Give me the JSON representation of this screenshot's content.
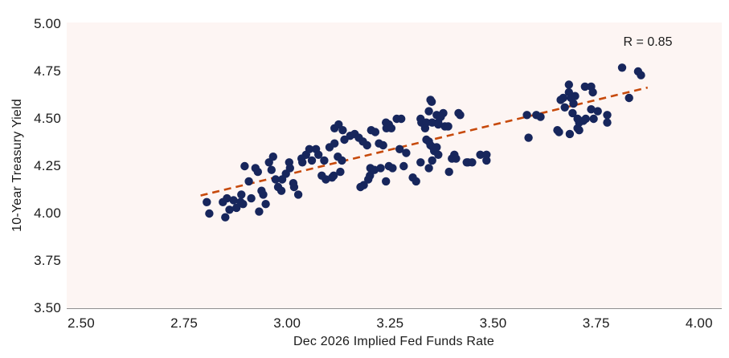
{
  "chart_data": {
    "type": "scatter",
    "title": "",
    "xlabel": "Dec 2026 Implied Fed Funds Rate",
    "ylabel": "10-Year Treasury Yield",
    "annotation": "R = 0.85",
    "xlim": [
      2.465,
      4.055
    ],
    "ylim": [
      3.5,
      5.0085
    ],
    "x_tick_values": [
      2.5,
      2.75,
      3.0,
      3.25,
      3.5,
      3.75,
      4.0
    ],
    "y_tick_values": [
      3.5,
      3.75,
      4.0,
      4.25,
      4.5,
      4.75,
      5.0
    ],
    "grid": false,
    "legend": "none",
    "colors": {
      "dot": "#17265c",
      "trend": "#c74a0c",
      "plot_bg": "#fdf5f3",
      "axis_line": "#8f8f8f",
      "text": "#1b1b1b"
    },
    "trendline": {
      "style": "dashed",
      "x1": 2.79,
      "y1": 4.095,
      "x2": 3.875,
      "y2": 4.665
    },
    "points": [
      [
        2.805,
        4.06
      ],
      [
        2.811,
        4.0
      ],
      [
        2.844,
        4.06
      ],
      [
        2.854,
        4.08
      ],
      [
        2.85,
        3.98
      ],
      [
        2.86,
        4.02
      ],
      [
        2.87,
        4.07
      ],
      [
        2.877,
        4.03
      ],
      [
        2.887,
        4.06
      ],
      [
        2.893,
        4.05
      ],
      [
        2.897,
        4.25
      ],
      [
        2.907,
        4.17
      ],
      [
        2.889,
        4.1
      ],
      [
        2.913,
        4.08
      ],
      [
        2.923,
        4.24
      ],
      [
        2.929,
        4.22
      ],
      [
        2.938,
        4.12
      ],
      [
        2.942,
        4.1
      ],
      [
        2.932,
        4.01
      ],
      [
        2.948,
        4.05
      ],
      [
        2.956,
        4.27
      ],
      [
        2.966,
        4.3
      ],
      [
        2.962,
        4.23
      ],
      [
        2.972,
        4.18
      ],
      [
        2.978,
        4.14
      ],
      [
        2.986,
        4.12
      ],
      [
        2.988,
        4.18
      ],
      [
        2.997,
        4.21
      ],
      [
        3.005,
        4.27
      ],
      [
        3.007,
        4.24
      ],
      [
        3.015,
        4.16
      ],
      [
        3.017,
        4.14
      ],
      [
        3.027,
        4.1
      ],
      [
        3.035,
        4.29
      ],
      [
        3.037,
        4.27
      ],
      [
        3.046,
        4.31
      ],
      [
        3.054,
        4.34
      ],
      [
        3.06,
        4.28
      ],
      [
        3.07,
        4.34
      ],
      [
        3.076,
        4.31
      ],
      [
        3.084,
        4.2
      ],
      [
        3.09,
        4.28
      ],
      [
        3.103,
        4.35
      ],
      [
        3.109,
        4.19
      ],
      [
        3.115,
        4.37
      ],
      [
        3.123,
        4.3
      ],
      [
        3.133,
        4.28
      ],
      [
        3.139,
        4.39
      ],
      [
        3.115,
        4.45
      ],
      [
        3.125,
        4.47
      ],
      [
        3.135,
        4.44
      ],
      [
        3.153,
        4.41
      ],
      [
        3.164,
        4.42
      ],
      [
        3.174,
        4.4
      ],
      [
        3.184,
        4.38
      ],
      [
        3.194,
        4.36
      ],
      [
        3.204,
        4.44
      ],
      [
        3.214,
        4.43
      ],
      [
        3.223,
        4.37
      ],
      [
        3.233,
        4.36
      ],
      [
        3.241,
        4.45
      ],
      [
        3.202,
        4.24
      ],
      [
        3.212,
        4.23
      ],
      [
        3.129,
        4.22
      ],
      [
        3.113,
        4.2
      ],
      [
        3.094,
        4.18
      ],
      [
        3.227,
        4.24
      ],
      [
        3.247,
        4.25
      ],
      [
        3.351,
        4.59
      ],
      [
        3.371,
        4.51
      ],
      [
        3.247,
        4.47
      ],
      [
        3.253,
        4.45
      ],
      [
        3.277,
        4.5
      ],
      [
        3.326,
        4.48
      ],
      [
        3.335,
        4.45
      ],
      [
        3.379,
        4.53
      ],
      [
        3.273,
        4.34
      ],
      [
        3.289,
        4.32
      ],
      [
        3.324,
        4.5
      ],
      [
        3.338,
        4.48
      ],
      [
        3.367,
        4.48
      ],
      [
        3.383,
        4.46
      ],
      [
        3.416,
        4.53
      ],
      [
        3.338,
        4.39
      ],
      [
        3.348,
        4.36
      ],
      [
        3.357,
        4.33
      ],
      [
        3.367,
        4.31
      ],
      [
        3.406,
        4.31
      ],
      [
        3.469,
        4.31
      ],
      [
        3.484,
        4.28
      ],
      [
        3.436,
        4.27
      ],
      [
        3.393,
        4.22
      ],
      [
        3.344,
        4.24
      ],
      [
        3.324,
        4.27
      ],
      [
        3.283,
        4.25
      ],
      [
        3.256,
        4.24
      ],
      [
        3.201,
        4.2
      ],
      [
        3.186,
        4.15
      ],
      [
        3.24,
        4.17
      ],
      [
        3.305,
        4.19
      ],
      [
        3.197,
        4.18
      ],
      [
        3.178,
        4.14
      ],
      [
        3.313,
        4.17
      ],
      [
        3.344,
        4.54
      ],
      [
        3.363,
        4.52
      ],
      [
        3.373,
        4.51
      ],
      [
        3.352,
        4.48
      ],
      [
        3.367,
        4.47
      ],
      [
        3.391,
        4.46
      ],
      [
        3.42,
        4.52
      ],
      [
        3.344,
        4.38
      ],
      [
        3.354,
        4.35
      ],
      [
        3.363,
        4.35
      ],
      [
        3.352,
        4.28
      ],
      [
        3.4,
        4.29
      ],
      [
        3.41,
        4.29
      ],
      [
        3.439,
        4.27
      ],
      [
        3.449,
        4.27
      ],
      [
        3.484,
        4.31
      ],
      [
        3.266,
        4.5
      ],
      [
        3.24,
        4.48
      ],
      [
        3.348,
        4.6
      ],
      [
        3.582,
        4.52
      ],
      [
        3.605,
        4.52
      ],
      [
        3.615,
        4.51
      ],
      [
        3.586,
        4.4
      ],
      [
        3.656,
        4.44
      ],
      [
        3.684,
        4.68
      ],
      [
        3.684,
        4.64
      ],
      [
        3.67,
        4.61
      ],
      [
        3.664,
        4.6
      ],
      [
        3.689,
        4.61
      ],
      [
        3.699,
        4.62
      ],
      [
        3.674,
        4.56
      ],
      [
        3.695,
        4.58
      ],
      [
        3.693,
        4.53
      ],
      [
        3.723,
        4.67
      ],
      [
        3.738,
        4.67
      ],
      [
        3.742,
        4.64
      ],
      [
        3.705,
        4.5
      ],
      [
        3.709,
        4.48
      ],
      [
        3.725,
        4.5
      ],
      [
        3.719,
        4.49
      ],
      [
        3.744,
        4.5
      ],
      [
        3.738,
        4.55
      ],
      [
        3.754,
        4.54
      ],
      [
        3.777,
        4.52
      ],
      [
        3.777,
        4.48
      ],
      [
        3.813,
        4.77
      ],
      [
        3.852,
        4.75
      ],
      [
        3.859,
        4.73
      ],
      [
        3.83,
        4.61
      ],
      [
        3.66,
        4.43
      ],
      [
        3.686,
        4.42
      ],
      [
        3.705,
        4.45
      ],
      [
        3.709,
        4.44
      ]
    ]
  }
}
